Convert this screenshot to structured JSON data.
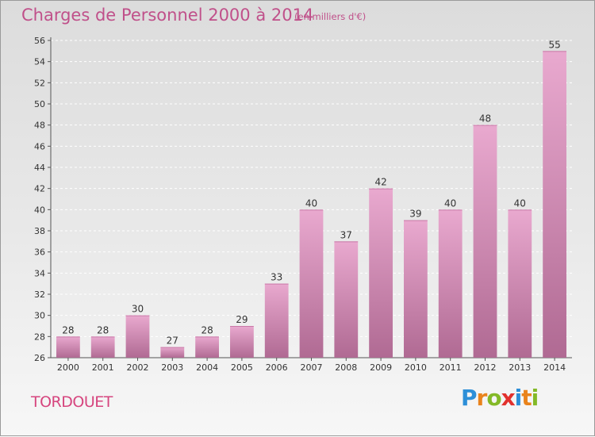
{
  "header": {
    "title": "Charges de Personnel 2000 à 2014",
    "subtitle": "(en milliers d'€)"
  },
  "footer": {
    "city": "TORDOUET",
    "logo": {
      "p": "P",
      "r": "r",
      "o": "o",
      "x": "x",
      "i1": "i",
      "t": "t",
      "i2": "i"
    }
  },
  "colors": {
    "bar_top": "#e9a9cf",
    "bar_bottom": "#b06a93",
    "title": "#c0508a"
  },
  "chart_data": {
    "type": "bar",
    "title": "Charges de Personnel 2000 à 2014",
    "subtitle": "(en milliers d'€)",
    "categories": [
      "2000",
      "2001",
      "2002",
      "2003",
      "2004",
      "2005",
      "2006",
      "2007",
      "2008",
      "2009",
      "2010",
      "2011",
      "2012",
      "2013",
      "2014"
    ],
    "values": [
      28,
      28,
      30,
      27,
      28,
      29,
      33,
      40,
      37,
      42,
      39,
      40,
      48,
      40,
      55
    ],
    "ylim": [
      26,
      56
    ],
    "yticks": [
      26,
      28,
      30,
      32,
      34,
      36,
      38,
      40,
      42,
      44,
      46,
      48,
      50,
      52,
      54,
      56
    ],
    "grid": true,
    "legend": "none"
  }
}
